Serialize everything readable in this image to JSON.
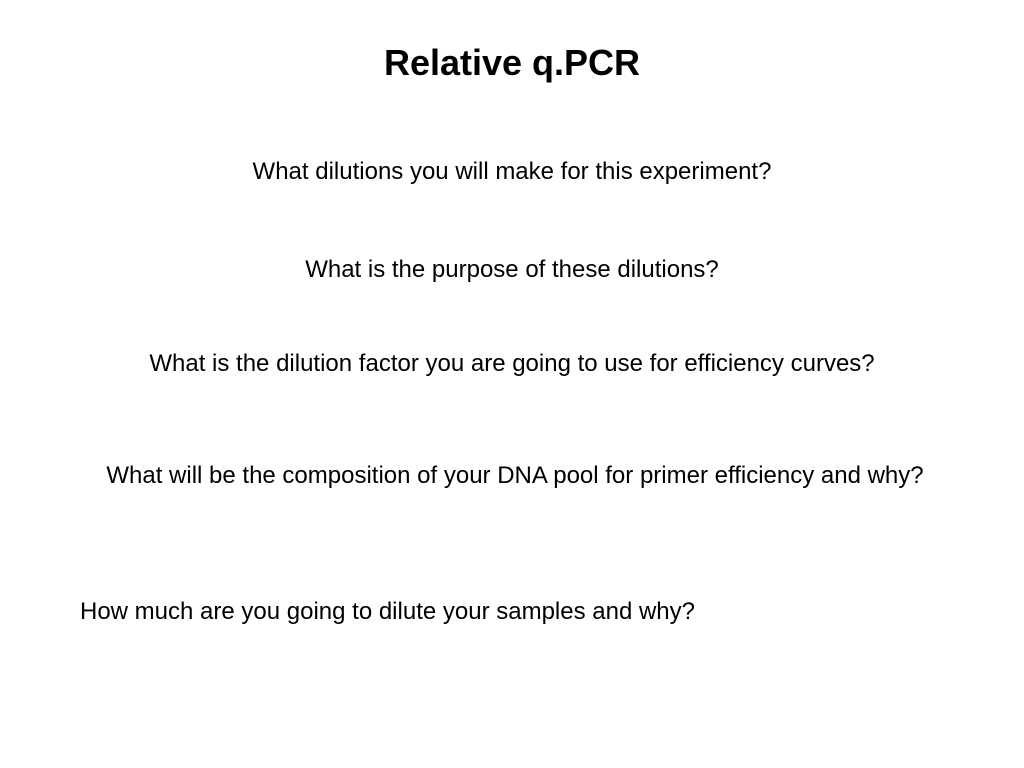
{
  "title": "Relative q.PCR",
  "questions": {
    "q1": "What dilutions you will make for this experiment?",
    "q2": "What is the purpose of these dilutions?",
    "q3": "What is the dilution factor you are going to use for efficiency curves?",
    "q4": "What will be the composition of your DNA pool for primer efficiency and why?",
    "q5": "How much are you going  to dilute your samples and why?"
  },
  "colors": {
    "background": "#ffffff",
    "text": "#000000"
  },
  "typography": {
    "title_fontsize": 36,
    "title_weight": "bold",
    "body_fontsize": 24,
    "body_weight": "normal",
    "font_family": "Arial"
  }
}
